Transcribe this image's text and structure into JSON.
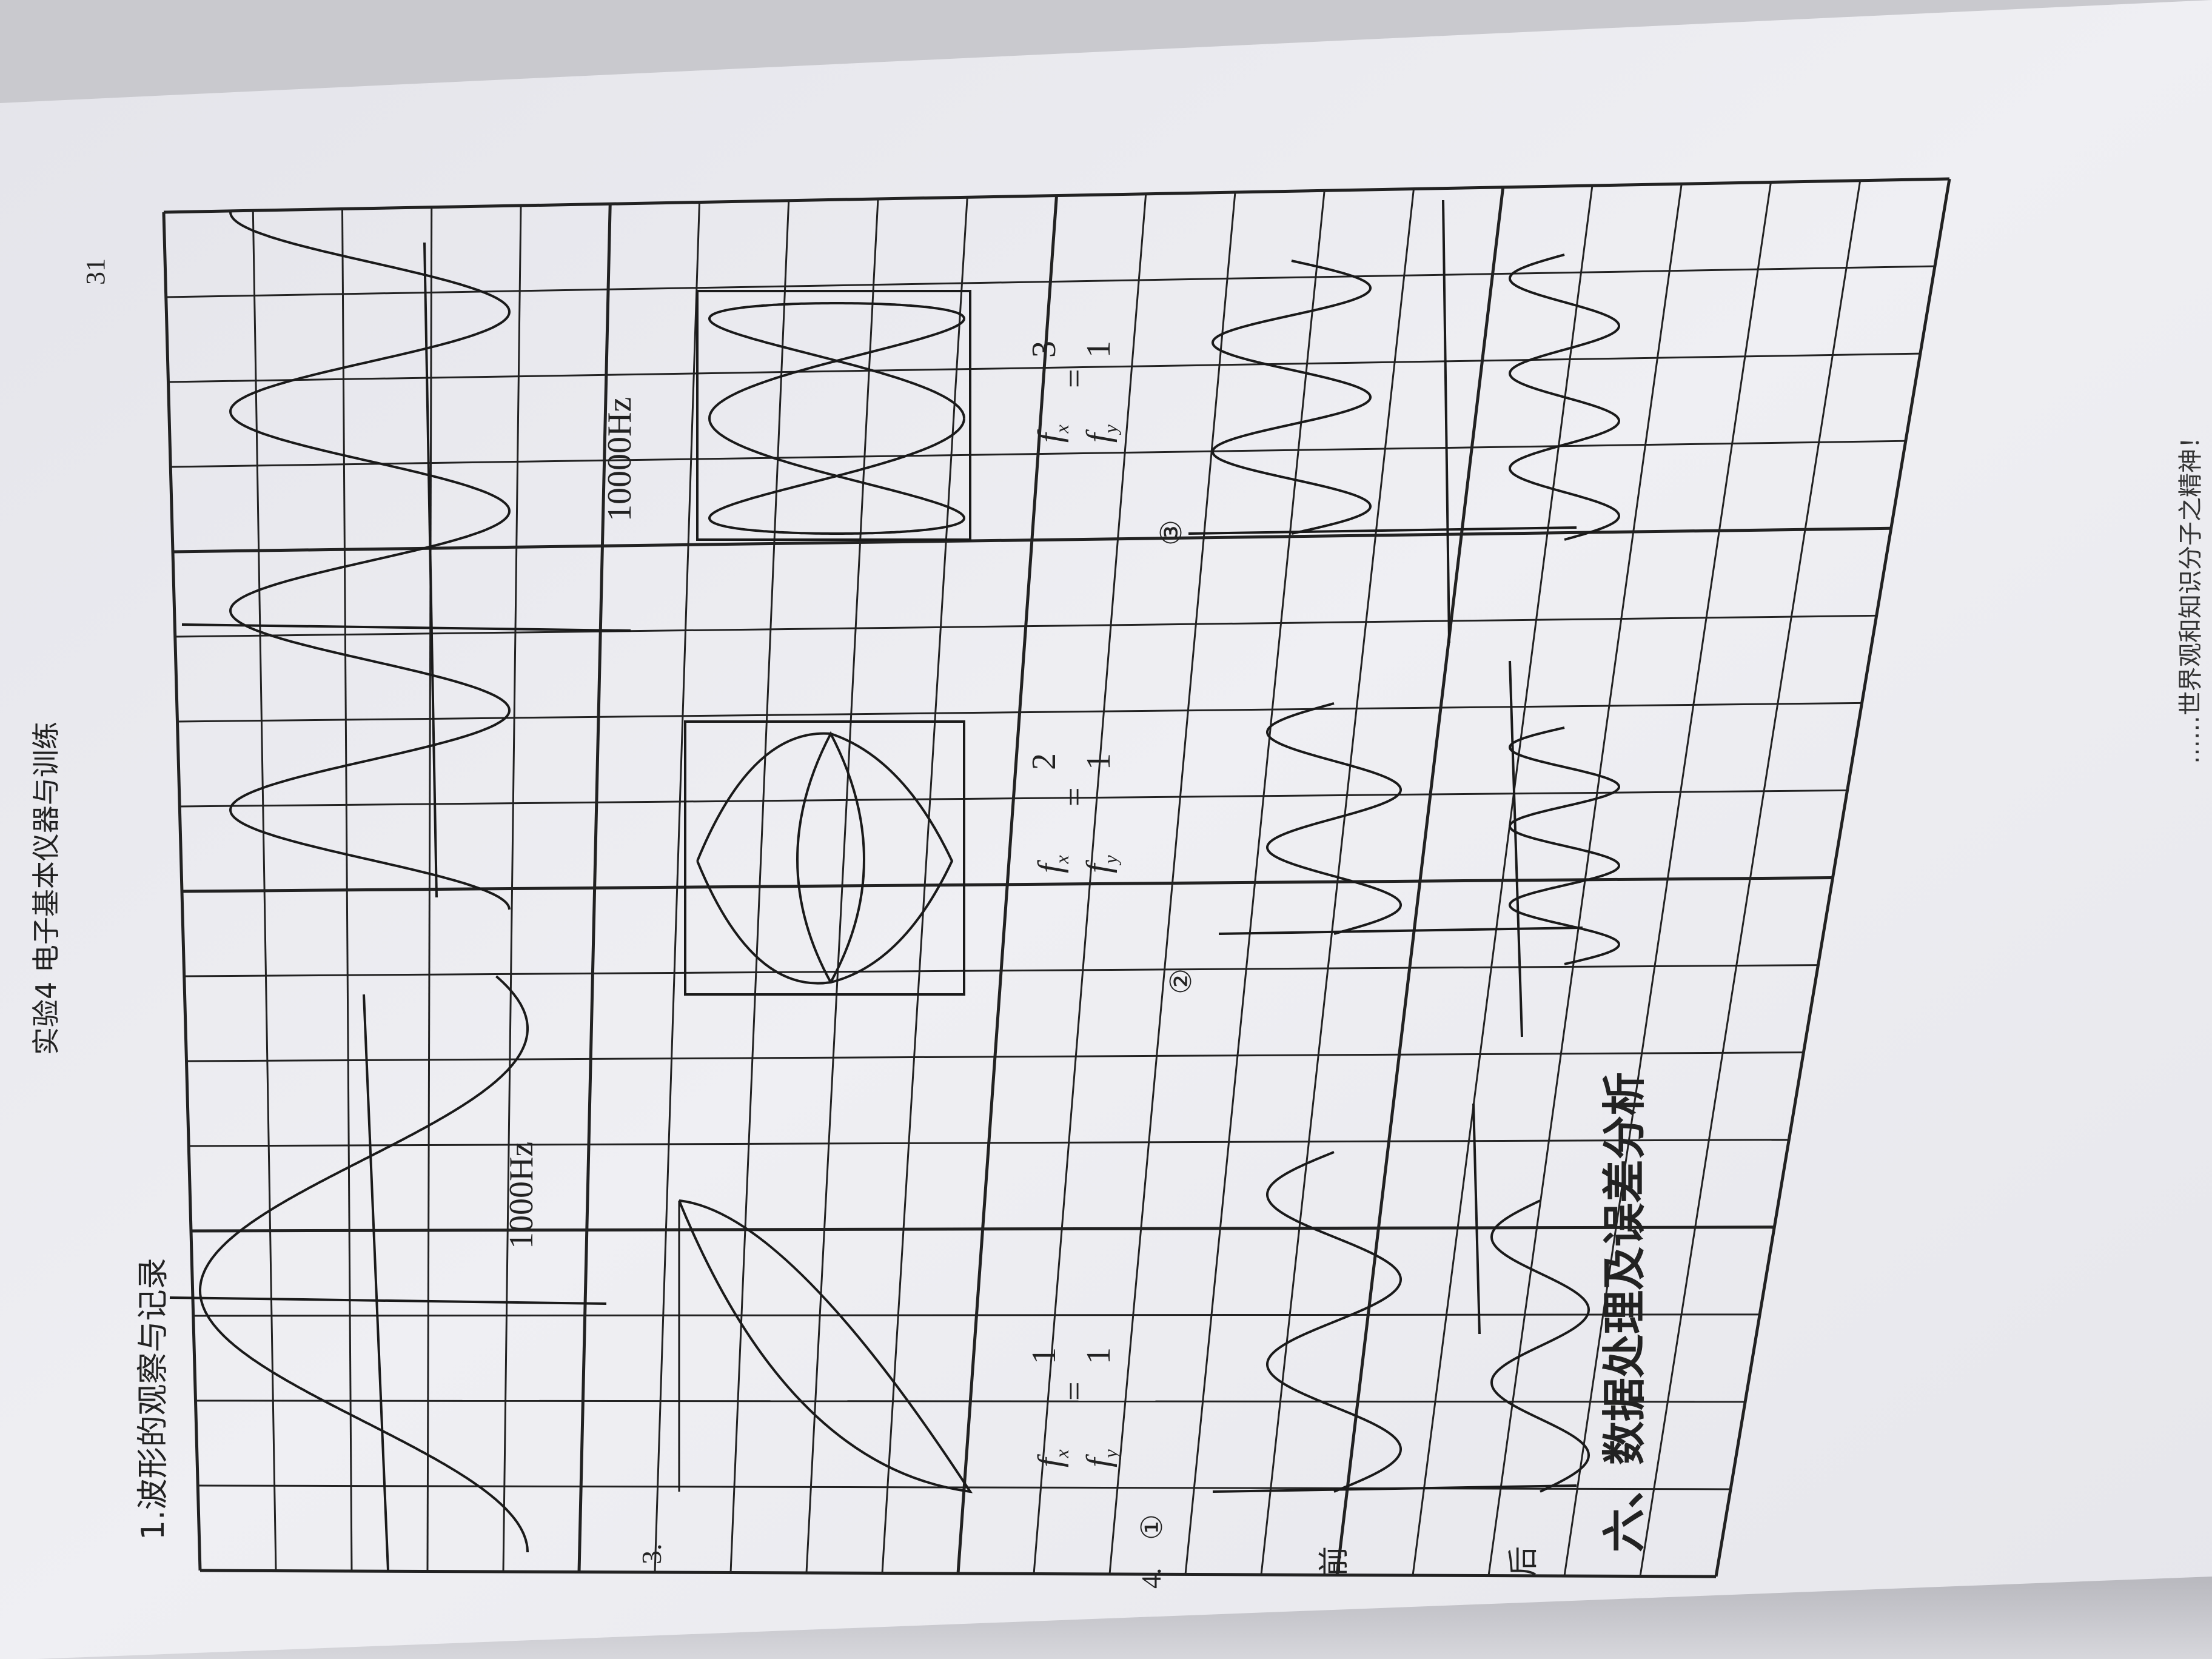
{
  "header": {
    "chapter": "实验4  电子基本仪器与训练",
    "page_number": "31"
  },
  "section1": {
    "title": "1.波形的观察与记录",
    "freq_label_1": "1000Hz",
    "freq_label_2": "10000Hz"
  },
  "section3": {
    "number": "3.",
    "ratio_1": {
      "fx": "f",
      "fx_sub": "x",
      "fy": "f",
      "fy_sub": "y",
      "num": "1",
      "den": "1",
      "eq": "="
    },
    "ratio_2": {
      "fx": "f",
      "fx_sub": "x",
      "fy": "f",
      "fy_sub": "y",
      "num": "2",
      "den": "1",
      "eq": "="
    },
    "ratio_3": {
      "fx": "f",
      "fx_sub": "x",
      "fy": "f",
      "fy_sub": "y",
      "num": "3",
      "den": "1",
      "eq": "="
    }
  },
  "section4": {
    "number": "4.",
    "items": [
      "①",
      "②",
      "③"
    ],
    "row_before": "前",
    "row_after": "后"
  },
  "section6": {
    "title": "六、数据处理及误差分析"
  },
  "footer_fragment": "……世界观和知识分子之精神！",
  "colors": {
    "paper": "#ececf0",
    "grid": "#222222",
    "ink": "#111111",
    "desk": "#c9c9ce"
  }
}
